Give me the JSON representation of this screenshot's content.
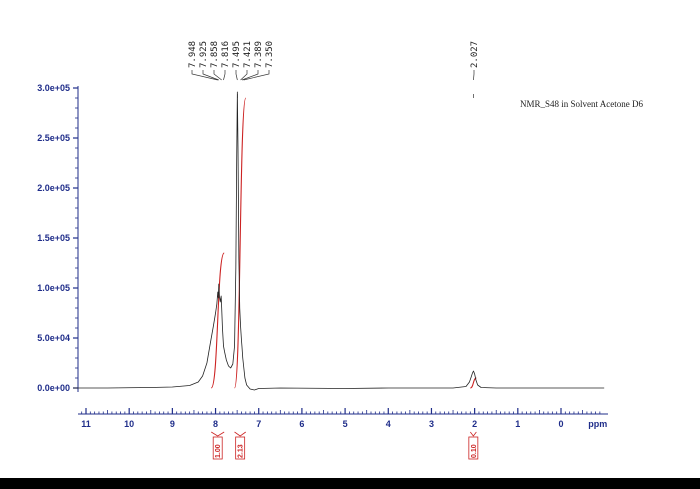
{
  "chart_data": {
    "type": "line",
    "title": "",
    "xlabel": "ppm",
    "ylabel": "",
    "x_reversed": true,
    "xlim": [
      11.3,
      -1.0
    ],
    "ylim": [
      -20000,
      300000
    ],
    "xticks": [
      11,
      10,
      9,
      8,
      7,
      6,
      5,
      4,
      3,
      2,
      1,
      0
    ],
    "xtick_labels": [
      "11",
      "10",
      "9",
      "8",
      "7",
      "6",
      "5",
      "4",
      "3",
      "2",
      "1",
      "0"
    ],
    "yticks": [
      0,
      50000,
      100000,
      150000,
      200000,
      250000,
      300000
    ],
    "ytick_labels": [
      "0.0e+00",
      "5.0e+04",
      "1.0e+05",
      "1.5e+05",
      "2.0e+05",
      "2.5e+05",
      "3.0e+05"
    ],
    "grid": false,
    "annotation": "NMR_S48 in Solvent Acetone D6",
    "peak_labels": [
      "7.948",
      "7.925",
      "7.858",
      "7.816",
      "7.495",
      "7.421",
      "7.389",
      "7.350",
      "2.027"
    ],
    "series": [
      {
        "points": [
          [
            11.3,
            0
          ],
          [
            10.5,
            0
          ],
          [
            9.5,
            500
          ],
          [
            9.0,
            1000
          ],
          [
            8.6,
            2500
          ],
          [
            8.4,
            6000
          ],
          [
            8.3,
            12000
          ],
          [
            8.2,
            25000
          ],
          [
            8.12,
            45000
          ],
          [
            8.05,
            62000
          ],
          [
            8.0,
            75000
          ],
          [
            7.97,
            84000
          ],
          [
            7.948,
            96000
          ],
          [
            7.935,
            90000
          ],
          [
            7.925,
            104000
          ],
          [
            7.91,
            92000
          ],
          [
            7.89,
            86000
          ],
          [
            7.87,
            92000
          ],
          [
            7.858,
            80000
          ],
          [
            7.84,
            60000
          ],
          [
            7.816,
            42000
          ],
          [
            7.79,
            36000
          ],
          [
            7.75,
            28000
          ],
          [
            7.7,
            22000
          ],
          [
            7.65,
            20000
          ],
          [
            7.6,
            24000
          ],
          [
            7.56,
            42000
          ],
          [
            7.53,
            120000
          ],
          [
            7.51,
            230000
          ],
          [
            7.495,
            296000
          ],
          [
            7.48,
            240000
          ],
          [
            7.46,
            130000
          ],
          [
            7.44,
            80000
          ],
          [
            7.421,
            62000
          ],
          [
            7.4,
            48000
          ],
          [
            7.389,
            42000
          ],
          [
            7.37,
            30000
          ],
          [
            7.35,
            22000
          ],
          [
            7.32,
            10000
          ],
          [
            7.28,
            3000
          ],
          [
            7.2,
            -1000
          ],
          [
            7.1,
            -2000
          ],
          [
            7.0,
            -500
          ],
          [
            6.5,
            0
          ],
          [
            5.0,
            -500
          ],
          [
            4.0,
            0
          ],
          [
            3.0,
            0
          ],
          [
            2.5,
            0
          ],
          [
            2.2,
            1500
          ],
          [
            2.12,
            6000
          ],
          [
            2.08,
            11000
          ],
          [
            2.05,
            15000
          ],
          [
            2.027,
            17000
          ],
          [
            2.0,
            14000
          ],
          [
            1.97,
            8000
          ],
          [
            1.93,
            3000
          ],
          [
            1.85,
            500
          ],
          [
            1.5,
            0
          ],
          [
            0.0,
            0
          ],
          [
            -1.0,
            0
          ]
        ]
      }
    ],
    "integrals": [
      {
        "label": "1.00",
        "from": 8.1,
        "to": 7.8,
        "height": 135000,
        "baseline": 0
      },
      {
        "label": "2.13",
        "from": 7.56,
        "to": 7.3,
        "height": 290000,
        "baseline": 0
      },
      {
        "label": "0.10",
        "from": 2.1,
        "to": 1.96,
        "height": 10000,
        "baseline": 0
      }
    ],
    "colors": {
      "axis": "#1f2d8a",
      "spectrum": "#222222",
      "integral": "#cc2222"
    }
  }
}
